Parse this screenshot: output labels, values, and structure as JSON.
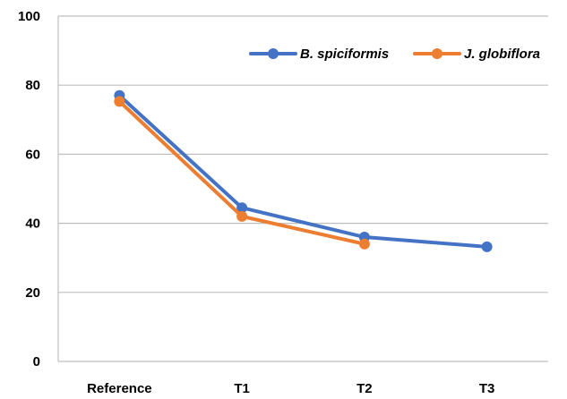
{
  "chart_data": {
    "type": "line",
    "categories": [
      "Reference",
      "T1",
      "T2",
      "T3"
    ],
    "series": [
      {
        "name": "B. spiciformis",
        "color": "#4472C4",
        "values": [
          77,
          44.5,
          36,
          33.2
        ]
      },
      {
        "name": "J. globiflora",
        "color": "#ED7D31",
        "values": [
          75.3,
          42,
          34,
          null
        ]
      }
    ],
    "ylim": [
      0,
      100
    ],
    "yticks": [
      0,
      20,
      40,
      60,
      80,
      100
    ],
    "grid": true,
    "legend": "top-right",
    "title": "",
    "xlabel": "",
    "ylabel": ""
  }
}
